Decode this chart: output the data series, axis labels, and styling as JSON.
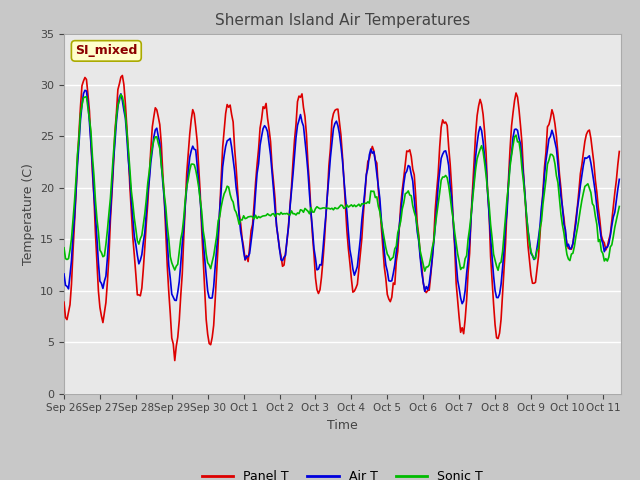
{
  "title": "Sherman Island Air Temperatures",
  "xlabel": "Time",
  "ylabel": "Temperature (C)",
  "ylim": [
    0,
    35
  ],
  "fig_bg_color": "#c8c8c8",
  "plot_bg_color": "#e8e8e8",
  "label_color": "#444444",
  "annotation_text": "SI_mixed",
  "annotation_bg": "#ffffcc",
  "annotation_border": "#aaaa00",
  "annotation_text_color": "#8b0000",
  "x_tick_labels": [
    "Sep 26",
    "Sep 27",
    "Sep 28",
    "Sep 29",
    "Sep 30",
    "Oct 1",
    "Oct 2",
    "Oct 3",
    "Oct 4",
    "Oct 5",
    "Oct 6",
    "Oct 7",
    "Oct 8",
    "Oct 9",
    "Oct 10",
    "Oct 11"
  ],
  "panel_t_color": "#dd0000",
  "air_t_color": "#0000dd",
  "sonic_t_color": "#00bb00",
  "line_width": 1.2,
  "grid_color": "#ffffff",
  "grid_lw": 1.0
}
